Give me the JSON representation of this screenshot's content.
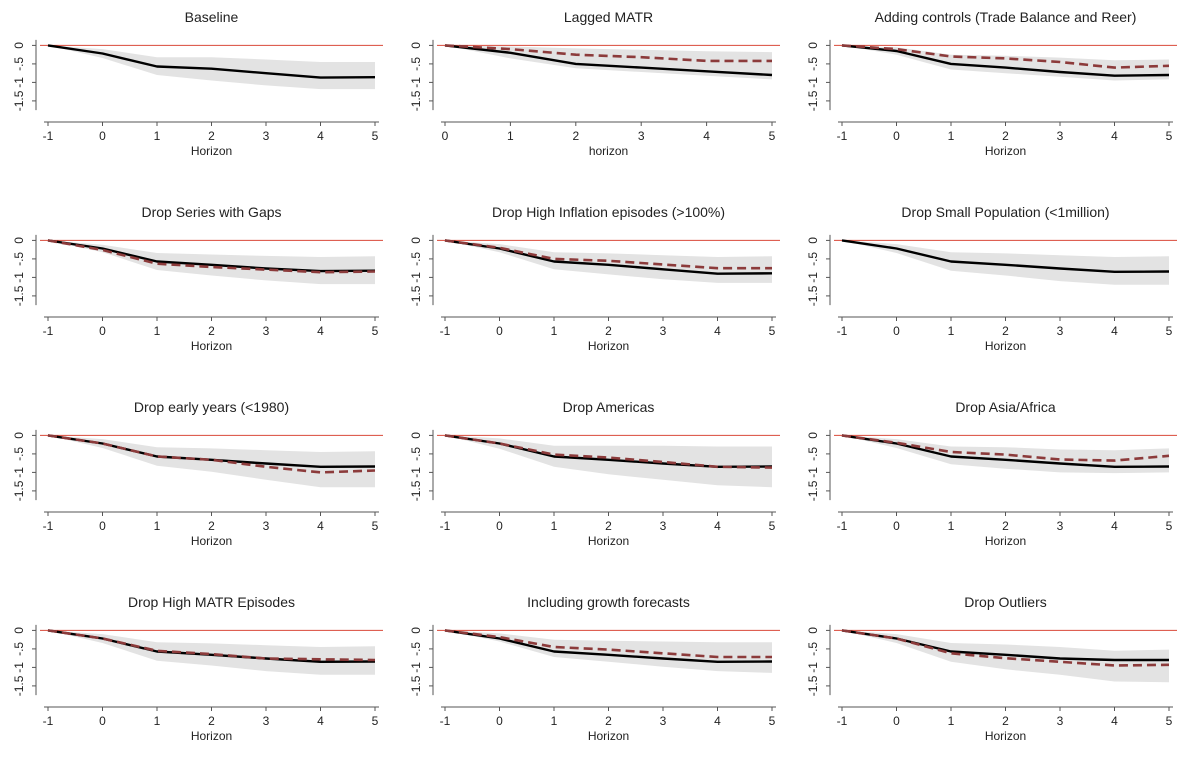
{
  "chart_data": [
    {
      "type": "line",
      "title": "Baseline",
      "xlabel": "Horizon",
      "x": [
        -1,
        0,
        1,
        2,
        3,
        4,
        5
      ],
      "xticks": [
        "-1",
        "0",
        "1",
        "2",
        "3",
        "4",
        "5"
      ],
      "ylim": [
        -1.8,
        0.2
      ],
      "yticks": [
        "0",
        "-.5",
        "-1",
        "-1.5"
      ],
      "reference_line": 0,
      "series": [
        {
          "style": "solid",
          "values": [
            0,
            -0.22,
            -0.57,
            -0.63,
            -0.75,
            -0.87,
            -0.86
          ]
        }
      ],
      "band": {
        "upper": [
          0,
          -0.1,
          -0.32,
          -0.32,
          -0.38,
          -0.45,
          -0.45
        ],
        "lower": [
          0,
          -0.34,
          -0.8,
          -0.95,
          -1.08,
          -1.18,
          -1.18
        ]
      }
    },
    {
      "type": "line",
      "title": "Lagged MATR",
      "xlabel": "horizon",
      "x": [
        0,
        1,
        2,
        3,
        4,
        5
      ],
      "xticks": [
        "0",
        "1",
        "2",
        "3",
        "4",
        "5"
      ],
      "ylim": [
        -1.8,
        0.2
      ],
      "yticks": [
        "0",
        "-.5",
        "-1",
        "-1.5"
      ],
      "reference_line": 0,
      "series": [
        {
          "style": "solid",
          "values": [
            0,
            -0.2,
            -0.5,
            -0.6,
            -0.7,
            -0.8
          ]
        },
        {
          "style": "dashed",
          "values": [
            0,
            -0.1,
            -0.25,
            -0.32,
            -0.42,
            -0.42
          ]
        }
      ],
      "band": {
        "upper": [
          0,
          -0.03,
          -0.08,
          -0.12,
          -0.16,
          -0.18
        ],
        "lower": [
          0,
          -0.35,
          -0.62,
          -0.72,
          -0.82,
          -0.92
        ]
      }
    },
    {
      "type": "line",
      "title": "Adding controls (Trade Balance and Reer)",
      "xlabel": "Horizon",
      "x": [
        -1,
        0,
        1,
        2,
        3,
        4,
        5
      ],
      "xticks": [
        "-1",
        "0",
        "1",
        "2",
        "3",
        "4",
        "5"
      ],
      "ylim": [
        -1.8,
        0.2
      ],
      "yticks": [
        "0",
        "-.5",
        "-1",
        "-1.5"
      ],
      "reference_line": 0,
      "series": [
        {
          "style": "solid",
          "values": [
            0,
            -0.15,
            -0.5,
            -0.6,
            -0.72,
            -0.82,
            -0.8
          ]
        },
        {
          "style": "dashed",
          "values": [
            0,
            -0.1,
            -0.3,
            -0.35,
            -0.45,
            -0.6,
            -0.55
          ]
        }
      ],
      "band": {
        "upper": [
          0,
          -0.05,
          -0.25,
          -0.28,
          -0.33,
          -0.4,
          -0.38
        ],
        "lower": [
          0,
          -0.25,
          -0.65,
          -0.75,
          -0.85,
          -0.95,
          -0.92
        ]
      }
    },
    {
      "type": "line",
      "title": "Drop Series with Gaps",
      "xlabel": "Horizon",
      "x": [
        -1,
        0,
        1,
        2,
        3,
        4,
        5
      ],
      "xticks": [
        "-1",
        "0",
        "1",
        "2",
        "3",
        "4",
        "5"
      ],
      "ylim": [
        -1.8,
        0.2
      ],
      "yticks": [
        "0",
        "-.5",
        "-1",
        "-1.5"
      ],
      "reference_line": 0,
      "series": [
        {
          "style": "solid",
          "values": [
            0,
            -0.22,
            -0.57,
            -0.66,
            -0.76,
            -0.83,
            -0.82
          ]
        },
        {
          "style": "dashed",
          "values": [
            0,
            -0.26,
            -0.63,
            -0.72,
            -0.79,
            -0.86,
            -0.84
          ]
        }
      ],
      "band": {
        "upper": [
          0,
          -0.12,
          -0.34,
          -0.38,
          -0.42,
          -0.45,
          -0.43
        ],
        "lower": [
          0,
          -0.32,
          -0.8,
          -0.95,
          -1.08,
          -1.18,
          -1.18
        ]
      }
    },
    {
      "type": "line",
      "title": "Drop High Inflation episodes (>100%)",
      "xlabel": "Horizon",
      "x": [
        -1,
        0,
        1,
        2,
        3,
        4,
        5
      ],
      "xticks": [
        "-1",
        "0",
        "1",
        "2",
        "3",
        "4",
        "5"
      ],
      "ylim": [
        -1.8,
        0.2
      ],
      "yticks": [
        "0",
        "-.5",
        "-1",
        "-1.5"
      ],
      "reference_line": 0,
      "series": [
        {
          "style": "solid",
          "values": [
            0,
            -0.22,
            -0.57,
            -0.66,
            -0.78,
            -0.9,
            -0.89
          ]
        },
        {
          "style": "dashed",
          "values": [
            0,
            -0.2,
            -0.5,
            -0.55,
            -0.65,
            -0.75,
            -0.75
          ]
        }
      ],
      "band": {
        "upper": [
          0,
          -0.1,
          -0.32,
          -0.35,
          -0.4,
          -0.45,
          -0.43
        ],
        "lower": [
          0,
          -0.32,
          -0.78,
          -0.92,
          -1.05,
          -1.15,
          -1.15
        ]
      }
    },
    {
      "type": "line",
      "title": "Drop Small Population (<1million)",
      "xlabel": "Horizon",
      "x": [
        -1,
        0,
        1,
        2,
        3,
        4,
        5
      ],
      "xticks": [
        "-1",
        "0",
        "1",
        "2",
        "3",
        "4",
        "5"
      ],
      "ylim": [
        -1.8,
        0.2
      ],
      "yticks": [
        "0",
        "-.5",
        "-1",
        "-1.5"
      ],
      "reference_line": 0,
      "series": [
        {
          "style": "solid",
          "values": [
            0,
            -0.22,
            -0.57,
            -0.66,
            -0.76,
            -0.85,
            -0.84
          ]
        }
      ],
      "band": {
        "upper": [
          0,
          -0.1,
          -0.32,
          -0.35,
          -0.4,
          -0.45,
          -0.43
        ],
        "lower": [
          0,
          -0.34,
          -0.82,
          -0.95,
          -1.1,
          -1.2,
          -1.2
        ]
      }
    },
    {
      "type": "line",
      "title": "Drop early years (<1980)",
      "xlabel": "Horizon",
      "x": [
        -1,
        0,
        1,
        2,
        3,
        4,
        5
      ],
      "xticks": [
        "-1",
        "0",
        "1",
        "2",
        "3",
        "4",
        "5"
      ],
      "ylim": [
        -1.8,
        0.2
      ],
      "yticks": [
        "0",
        "-.5",
        "-1",
        "-1.5"
      ],
      "reference_line": 0,
      "series": [
        {
          "style": "solid",
          "values": [
            0,
            -0.22,
            -0.57,
            -0.66,
            -0.76,
            -0.85,
            -0.84
          ]
        },
        {
          "style": "dashed",
          "values": [
            0,
            -0.22,
            -0.57,
            -0.66,
            -0.85,
            -1.0,
            -0.95
          ]
        }
      ],
      "band": {
        "upper": [
          0,
          -0.1,
          -0.32,
          -0.35,
          -0.4,
          -0.45,
          -0.43
        ],
        "lower": [
          0,
          -0.34,
          -0.82,
          -0.98,
          -1.2,
          -1.4,
          -1.4
        ]
      }
    },
    {
      "type": "line",
      "title": "Drop Americas",
      "xlabel": "Horizon",
      "x": [
        -1,
        0,
        1,
        2,
        3,
        4,
        5
      ],
      "xticks": [
        "-1",
        "0",
        "1",
        "2",
        "3",
        "4",
        "5"
      ],
      "ylim": [
        -1.8,
        0.2
      ],
      "yticks": [
        "0",
        "-.5",
        "-1",
        "-1.5"
      ],
      "reference_line": 0,
      "series": [
        {
          "style": "solid",
          "values": [
            0,
            -0.22,
            -0.57,
            -0.66,
            -0.76,
            -0.85,
            -0.84
          ]
        },
        {
          "style": "dashed",
          "values": [
            0,
            -0.22,
            -0.52,
            -0.6,
            -0.72,
            -0.85,
            -0.87
          ]
        }
      ],
      "band": {
        "upper": [
          0,
          -0.08,
          -0.28,
          -0.28,
          -0.28,
          -0.3,
          -0.3
        ],
        "lower": [
          0,
          -0.36,
          -0.85,
          -1.05,
          -1.2,
          -1.35,
          -1.4
        ]
      }
    },
    {
      "type": "line",
      "title": "Drop Asia/Africa",
      "xlabel": "Horizon",
      "x": [
        -1,
        0,
        1,
        2,
        3,
        4,
        5
      ],
      "xticks": [
        "-1",
        "0",
        "1",
        "2",
        "3",
        "4",
        "5"
      ],
      "ylim": [
        -1.8,
        0.2
      ],
      "yticks": [
        "0",
        "-.5",
        "-1",
        "-1.5"
      ],
      "reference_line": 0,
      "series": [
        {
          "style": "solid",
          "values": [
            0,
            -0.22,
            -0.57,
            -0.66,
            -0.76,
            -0.85,
            -0.84
          ]
        },
        {
          "style": "dashed",
          "values": [
            0,
            -0.2,
            -0.45,
            -0.52,
            -0.65,
            -0.68,
            -0.55
          ]
        }
      ],
      "band": {
        "upper": [
          0,
          -0.1,
          -0.3,
          -0.32,
          -0.38,
          -0.4,
          -0.35
        ],
        "lower": [
          0,
          -0.34,
          -0.78,
          -0.9,
          -1.0,
          -1.02,
          -1.0
        ]
      }
    },
    {
      "type": "line",
      "title": "Drop High MATR Episodes",
      "xlabel": "Horizon",
      "x": [
        -1,
        0,
        1,
        2,
        3,
        4,
        5
      ],
      "xticks": [
        "-1",
        "0",
        "1",
        "2",
        "3",
        "4",
        "5"
      ],
      "ylim": [
        -1.8,
        0.2
      ],
      "yticks": [
        "0",
        "-.5",
        "-1",
        "-1.5"
      ],
      "reference_line": 0,
      "series": [
        {
          "style": "solid",
          "values": [
            0,
            -0.22,
            -0.57,
            -0.66,
            -0.76,
            -0.85,
            -0.84
          ]
        },
        {
          "style": "dashed",
          "values": [
            0,
            -0.22,
            -0.55,
            -0.64,
            -0.76,
            -0.78,
            -0.8
          ]
        }
      ],
      "band": {
        "upper": [
          0,
          -0.1,
          -0.32,
          -0.35,
          -0.4,
          -0.45,
          -0.43
        ],
        "lower": [
          0,
          -0.34,
          -0.82,
          -0.95,
          -1.1,
          -1.2,
          -1.2
        ]
      }
    },
    {
      "type": "line",
      "title": "Including growth forecasts",
      "xlabel": "Horizon",
      "x": [
        -1,
        0,
        1,
        2,
        3,
        4,
        5
      ],
      "xticks": [
        "-1",
        "0",
        "1",
        "2",
        "3",
        "4",
        "5"
      ],
      "ylim": [
        -1.8,
        0.2
      ],
      "yticks": [
        "0",
        "-.5",
        "-1",
        "-1.5"
      ],
      "reference_line": 0,
      "series": [
        {
          "style": "solid",
          "values": [
            0,
            -0.22,
            -0.57,
            -0.66,
            -0.76,
            -0.85,
            -0.84
          ]
        },
        {
          "style": "dashed",
          "values": [
            0,
            -0.18,
            -0.45,
            -0.52,
            -0.62,
            -0.72,
            -0.72
          ]
        }
      ],
      "band": {
        "upper": [
          0,
          -0.08,
          -0.25,
          -0.28,
          -0.3,
          -0.32,
          -0.32
        ],
        "lower": [
          0,
          -0.3,
          -0.72,
          -0.85,
          -0.98,
          -1.1,
          -1.15
        ]
      }
    },
    {
      "type": "line",
      "title": "Drop Outliers",
      "xlabel": "Horizon",
      "x": [
        -1,
        0,
        1,
        2,
        3,
        4,
        5
      ],
      "xticks": [
        "-1",
        "0",
        "1",
        "2",
        "3",
        "4",
        "5"
      ],
      "ylim": [
        -1.8,
        0.2
      ],
      "yticks": [
        "0",
        "-.5",
        "-1",
        "-1.5"
      ],
      "reference_line": 0,
      "series": [
        {
          "style": "solid",
          "values": [
            0,
            -0.22,
            -0.57,
            -0.66,
            -0.76,
            -0.8,
            -0.8
          ]
        },
        {
          "style": "dashed",
          "values": [
            0,
            -0.22,
            -0.62,
            -0.75,
            -0.85,
            -0.95,
            -0.93
          ]
        }
      ],
      "band": {
        "upper": [
          0,
          -0.1,
          -0.34,
          -0.38,
          -0.45,
          -0.55,
          -0.52
        ],
        "lower": [
          0,
          -0.34,
          -0.85,
          -1.05,
          -1.2,
          -1.38,
          -1.4
        ]
      }
    }
  ],
  "colors": {
    "solid": "#000000",
    "dashed": "#8c3b3b",
    "band": "#e3e3e3",
    "zero_line": "#d94a3a",
    "axis": "#555555",
    "text": "#222222"
  }
}
